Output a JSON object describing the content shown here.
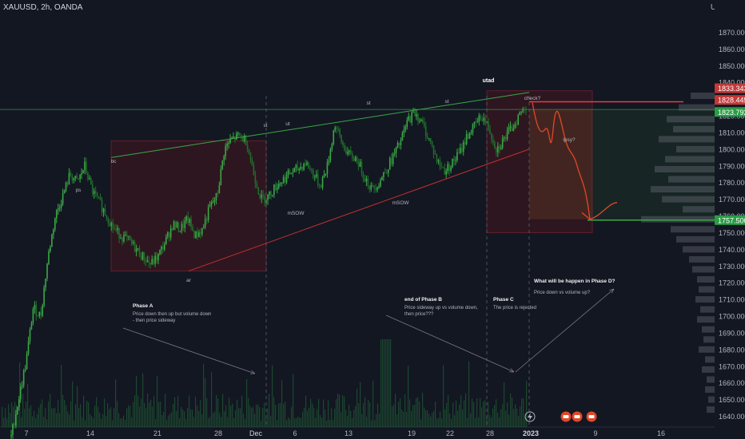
{
  "header": {
    "symbol": "XAUUSD, 2h, OANDA",
    "currency": "USD"
  },
  "chart_data": {
    "type": "candlestick",
    "symbol": "XAUUSD",
    "interval": "2h",
    "source": "OANDA",
    "ylim": [
      1637,
      1880
    ],
    "y_ticks": [
      1640,
      1650,
      1660,
      1670,
      1680,
      1690,
      1700,
      1710,
      1720,
      1730,
      1740,
      1750,
      1760,
      1770,
      1780,
      1790,
      1800,
      1810,
      1820,
      1830,
      1840,
      1850,
      1860,
      1870
    ],
    "x_ticks": [
      "7",
      "14",
      "21",
      "28",
      "Dec",
      "6",
      "13",
      "19",
      "22",
      "28",
      "2023",
      "9",
      "16"
    ],
    "series": [
      {
        "name": "XAUUSD",
        "approx_closes": [
          1628,
          1650,
          1672,
          1705,
          1700,
          1735,
          1760,
          1772,
          1785,
          1780,
          1790,
          1775,
          1768,
          1760,
          1752,
          1748,
          1745,
          1740,
          1735,
          1731,
          1736,
          1745,
          1755,
          1752,
          1758,
          1748,
          1752,
          1765,
          1772,
          1800,
          1806,
          1808,
          1805,
          1785,
          1770,
          1772,
          1778,
          1782,
          1786,
          1788,
          1792,
          1786,
          1778,
          1790,
          1815,
          1803,
          1796,
          1794,
          1784,
          1776,
          1780,
          1788,
          1796,
          1805,
          1818,
          1822,
          1814,
          1804,
          1792,
          1787,
          1792,
          1798,
          1808,
          1814,
          1820,
          1812,
          1800,
          1806,
          1812,
          1820,
          1826
        ]
      }
    ],
    "price_labels": [
      {
        "value": "1833.343",
        "kind": "red"
      },
      {
        "value": "1828.445",
        "kind": "red"
      },
      {
        "value": "1823.792",
        "kind": "green"
      },
      {
        "value": "1757.500",
        "kind": "green"
      }
    ],
    "wyckoff_labels": [
      "ps",
      "bc",
      "ar",
      "st",
      "ut",
      "mSOW",
      "st",
      "mSOW",
      "st",
      "utad",
      "check?",
      "lpsy?"
    ],
    "annotations": [
      {
        "title": "Phase A",
        "text": "Price down then up but volume down\n- then price sideway"
      },
      {
        "title": "end of Phase B",
        "text": "Price sideway up vs volume down,\nthen price???"
      },
      {
        "title": "Phase C",
        "text": "The price is rejected"
      },
      {
        "title": "What will be happen in Phase D?",
        "text": "Price down vs volume up?"
      }
    ],
    "levels": {
      "trading_range_top": 1805,
      "trading_range_bottom": 1727,
      "phase_c_box_top": 1835,
      "phase_c_box_bottom": 1750,
      "target_line": 1757.5
    },
    "grid": false
  }
}
